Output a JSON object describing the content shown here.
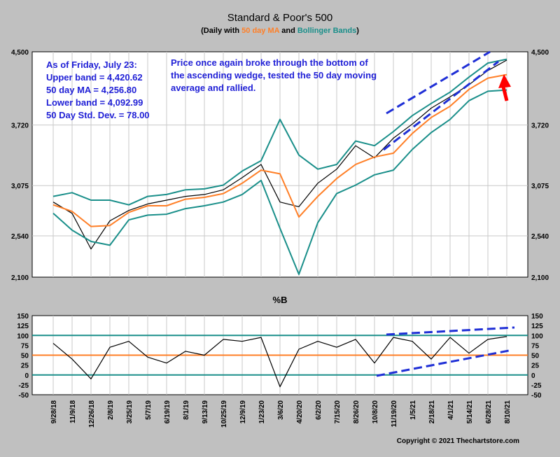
{
  "colors": {
    "background": "#c0c0c0",
    "plot_bg": "#ffffff",
    "price": "#000000",
    "ma": "#ff7f27",
    "bands": "#1a8f8a",
    "annotation": "#1f1fd6",
    "wedge": "#1f2fd6",
    "arrow": "#ff0000",
    "grid": "#c8c8c8"
  },
  "chart_data": [
    {
      "type": "line",
      "title": "Standard & Poor's 500",
      "subtitle": {
        "prefix": "(Daily with ",
        "ma_label": "50 day MA",
        "middle": " and ",
        "bands_label": "Bollinger Bands",
        "suffix": ")"
      },
      "ylim": [
        2100,
        4500
      ],
      "yticks": [
        "4,500",
        "3,720",
        "3,075",
        "2,540",
        "2,100"
      ],
      "ytick_values": [
        4500,
        3720,
        3075,
        2540,
        2100
      ],
      "grid": true,
      "info_box": [
        "As of Friday, July 23:",
        "Upper band = 4,420.62",
        "50 day MA = 4,256.80",
        "Lower band = 4,092.99",
        "50 Day Std. Dev. = 78.00"
      ],
      "annotation": [
        "Price once again broke through the bottom of",
        "the ascending wedge, tested the 50 day moving",
        "average and rallied."
      ],
      "dates": [
        "2018-09-28",
        "2018-11-09",
        "2018-12-26",
        "2019-02-08",
        "2019-03-25",
        "2019-05-07",
        "2019-06-19",
        "2019-08-01",
        "2019-09-13",
        "2019-10-25",
        "2019-12-09",
        "2020-01-23",
        "2020-03-06",
        "2020-04-20",
        "2020-06-02",
        "2020-07-15",
        "2020-08-26",
        "2020-10-08",
        "2020-11-19",
        "2021-01-05",
        "2021-02-18",
        "2021-04-01",
        "2021-05-14",
        "2021-06-28",
        "2021-07-23"
      ],
      "series": [
        {
          "name": "S&P 500",
          "values": [
            2900,
            2780,
            2400,
            2700,
            2810,
            2880,
            2920,
            2960,
            2980,
            3030,
            3160,
            3300,
            2900,
            2850,
            3100,
            3250,
            3500,
            3370,
            3580,
            3730,
            3900,
            4020,
            4150,
            4300,
            4411
          ]
        },
        {
          "name": "50 day MA",
          "values": [
            2870,
            2800,
            2640,
            2650,
            2790,
            2860,
            2860,
            2930,
            2950,
            2990,
            3100,
            3240,
            3200,
            2740,
            2960,
            3150,
            3300,
            3380,
            3420,
            3630,
            3800,
            3920,
            4100,
            4220,
            4257
          ]
        },
        {
          "name": "Upper band",
          "values": [
            2960,
            3000,
            2920,
            2920,
            2870,
            2960,
            2980,
            3030,
            3040,
            3080,
            3230,
            3340,
            3780,
            3400,
            3250,
            3300,
            3550,
            3500,
            3650,
            3820,
            3950,
            4070,
            4230,
            4380,
            4421
          ]
        },
        {
          "name": "Lower band",
          "values": [
            2780,
            2600,
            2480,
            2440,
            2710,
            2760,
            2770,
            2830,
            2860,
            2900,
            2980,
            3130,
            2620,
            2130,
            2680,
            2990,
            3080,
            3190,
            3240,
            3460,
            3640,
            3780,
            3980,
            4080,
            4093
          ]
        }
      ]
    },
    {
      "type": "line",
      "title": "%B",
      "ylim": [
        -50,
        150
      ],
      "yticks": [
        "150",
        "125",
        "100",
        "75",
        "50",
        "25",
        "0",
        "-25",
        "-50"
      ],
      "ytick_values": [
        150,
        125,
        100,
        75,
        50,
        25,
        0,
        -25,
        -50
      ],
      "reference_lines": [
        100,
        50,
        0
      ],
      "series": [
        {
          "name": "%B",
          "values": [
            80,
            40,
            -10,
            70,
            85,
            45,
            30,
            60,
            50,
            90,
            85,
            95,
            -30,
            65,
            85,
            70,
            90,
            30,
            95,
            85,
            40,
            95,
            55,
            90,
            97
          ]
        }
      ]
    }
  ],
  "xticks": [
    "9/28/18",
    "11/9/18",
    "12/26/18",
    "2/8/19",
    "3/25/19",
    "5/7/19",
    "6/19/19",
    "8/1/19",
    "9/13/19",
    "10/25/19",
    "12/9/19",
    "1/23/20",
    "3/6/20",
    "4/20/20",
    "6/2/20",
    "7/15/20",
    "8/26/20",
    "10/8/20",
    "11/19/20",
    "1/5/21",
    "2/18/21",
    "4/1/21",
    "5/14/21",
    "6/28/21",
    "8/10/21"
  ],
  "copyright": "Copyright © 2021 Thechartstore.com"
}
